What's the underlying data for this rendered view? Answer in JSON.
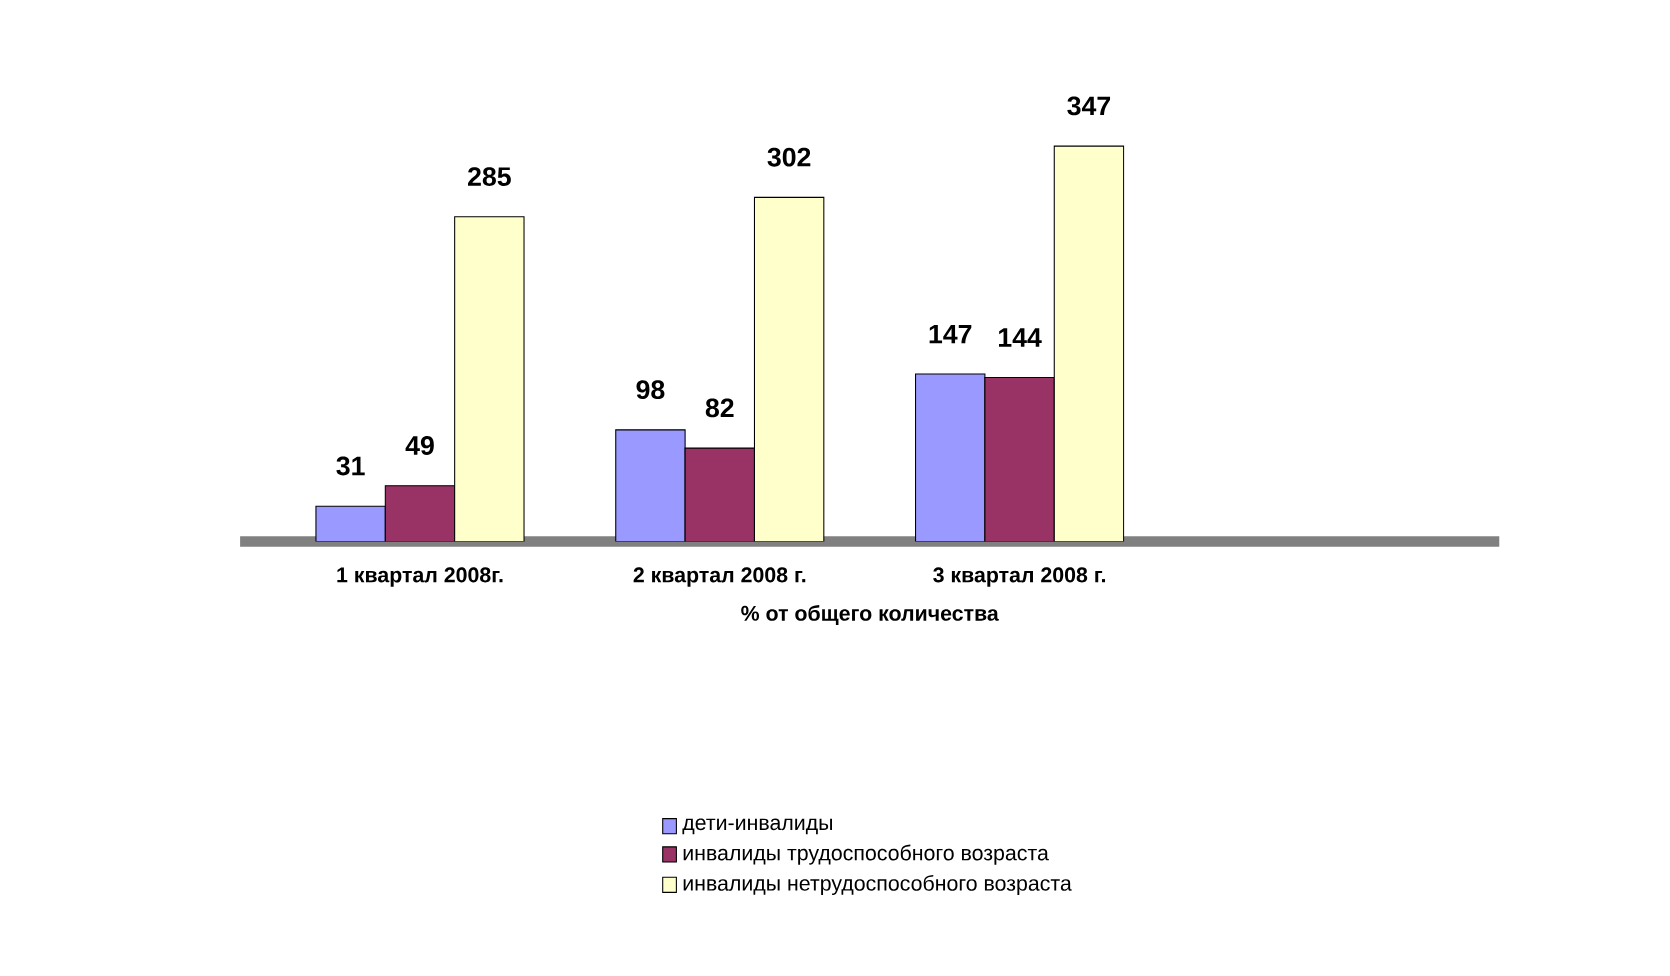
{
  "chart_data": {
    "type": "bar",
    "xlabel": "% от общего количества",
    "categories": [
      "1 квартал 2008г.",
      "2 квартал 2008 г.",
      "3 квартал 2008 г."
    ],
    "series": [
      {
        "name": "дети-инвалиды",
        "color": "#9999ff",
        "values": [
          31,
          98,
          147
        ]
      },
      {
        "name": "инвалиды трудоспособного возраста",
        "color": "#993366",
        "values": [
          49,
          82,
          144
        ]
      },
      {
        "name": "инвалиды нетрудоспособного возраста",
        "color": "#ffffcc",
        "values": [
          285,
          302,
          347
        ]
      }
    ],
    "data_labels": true,
    "legend": "bottom",
    "tick_labels": "x"
  }
}
